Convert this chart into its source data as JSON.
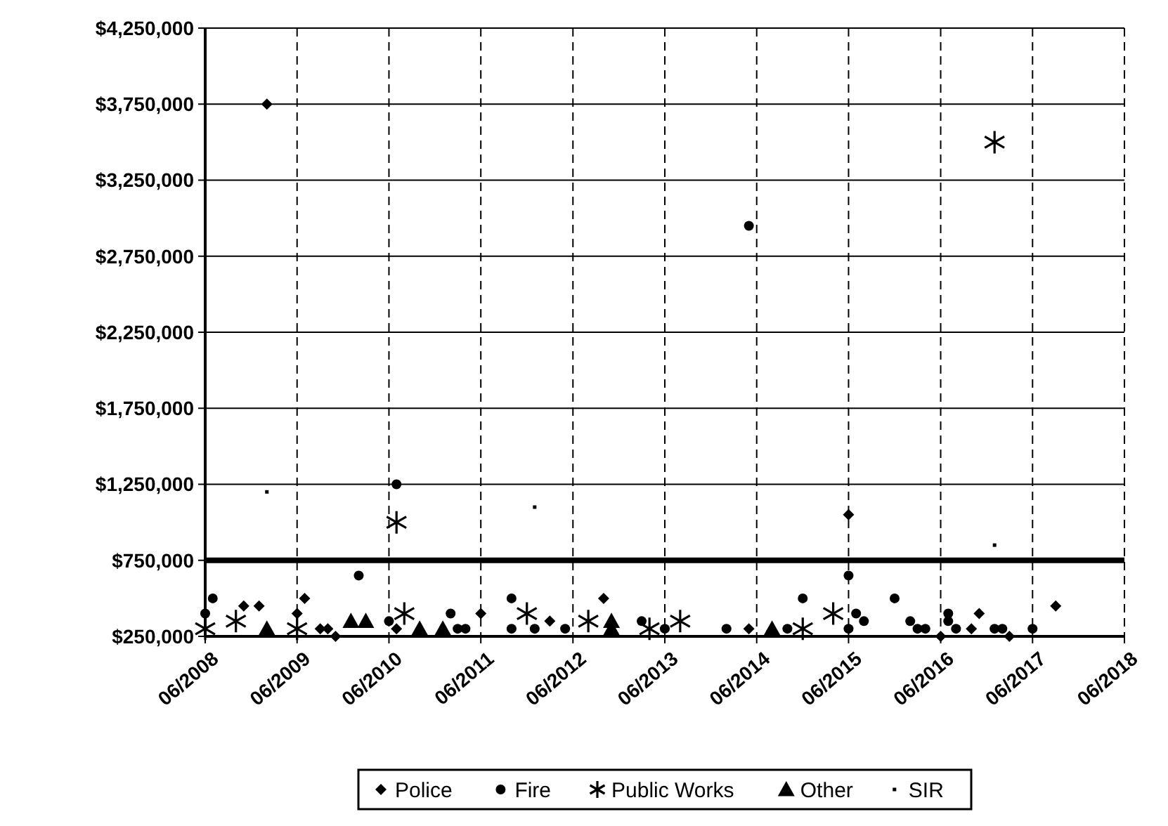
{
  "chart_data": {
    "type": "scatter",
    "xlim": [
      "2008-06",
      "2018-06"
    ],
    "xticks": [
      {
        "value": "2008-06",
        "label": "06/2008"
      },
      {
        "value": "2009-06",
        "label": "06/2009"
      },
      {
        "value": "2010-06",
        "label": "06/2010"
      },
      {
        "value": "2011-06",
        "label": "06/2011"
      },
      {
        "value": "2012-06",
        "label": "06/2012"
      },
      {
        "value": "2013-06",
        "label": "06/2013"
      },
      {
        "value": "2014-06",
        "label": "06/2014"
      },
      {
        "value": "2015-06",
        "label": "06/2015"
      },
      {
        "value": "2016-06",
        "label": "06/2016"
      },
      {
        "value": "2017-06",
        "label": "06/2017"
      },
      {
        "value": "2018-06",
        "label": "06/2018"
      }
    ],
    "ylim": [
      250000,
      4250000
    ],
    "yticks": [
      {
        "value": 250000,
        "label": "$250,000"
      },
      {
        "value": 750000,
        "label": "$750,000"
      },
      {
        "value": 1250000,
        "label": "$1,250,000"
      },
      {
        "value": 1750000,
        "label": "$1,750,000"
      },
      {
        "value": 2250000,
        "label": "$2,250,000"
      },
      {
        "value": 2750000,
        "label": "$2,750,000"
      },
      {
        "value": 3250000,
        "label": "$3,250,000"
      },
      {
        "value": 3750000,
        "label": "$3,750,000"
      },
      {
        "value": 4250000,
        "label": "$4,250,000"
      }
    ],
    "grid": true,
    "legend": "bottom",
    "ref_lines": [
      {
        "axis": "y",
        "value": 750000,
        "color": "#000000"
      }
    ],
    "series": [
      {
        "name": "Police",
        "color": "#000000",
        "marker": "diamond",
        "x": [
          "2009-02",
          "2008-11",
          "2009-01",
          "2009-06",
          "2009-07",
          "2009-09",
          "2009-10",
          "2009-11",
          "2010-07",
          "2011-06",
          "2012-03",
          "2012-10",
          "2014-05",
          "2015-06",
          "2016-06",
          "2016-10",
          "2016-11",
          "2017-03",
          "2017-09"
        ],
        "values": [
          3750000,
          450000,
          450000,
          400000,
          500000,
          300000,
          300000,
          250000,
          300000,
          400000,
          350000,
          500000,
          300000,
          1050000,
          250000,
          300000,
          400000,
          250000,
          450000
        ]
      },
      {
        "name": "Fire",
        "color": "#000000",
        "marker": "circle",
        "x": [
          "2008-06",
          "2008-07",
          "2010-02",
          "2010-06",
          "2010-07",
          "2011-02",
          "2011-03",
          "2011-04",
          "2011-10",
          "2011-10",
          "2012-01",
          "2012-05",
          "2013-03",
          "2013-06",
          "2014-02",
          "2014-05",
          "2014-10",
          "2014-12",
          "2015-06",
          "2015-06",
          "2015-07",
          "2015-08",
          "2015-12",
          "2016-02",
          "2016-03",
          "2016-04",
          "2016-07",
          "2016-07",
          "2016-08",
          "2017-01",
          "2017-02",
          "2017-06"
        ],
        "values": [
          400000,
          500000,
          650000,
          350000,
          1250000,
          400000,
          300000,
          300000,
          500000,
          300000,
          300000,
          300000,
          350000,
          300000,
          300000,
          2950000,
          300000,
          500000,
          650000,
          300000,
          400000,
          350000,
          500000,
          350000,
          300000,
          300000,
          400000,
          350000,
          300000,
          300000,
          300000,
          300000
        ]
      },
      {
        "name": "Public Works",
        "color": "#000000",
        "marker": "cross",
        "x": [
          "2008-06",
          "2008-10",
          "2009-06",
          "2010-07",
          "2010-08",
          "2011-12",
          "2012-08",
          "2013-04",
          "2013-08",
          "2014-12",
          "2015-04",
          "2017-01"
        ],
        "values": [
          300000,
          350000,
          300000,
          1000000,
          400000,
          400000,
          350000,
          300000,
          350000,
          300000,
          400000,
          3500000
        ]
      },
      {
        "name": "Other",
        "color": "#000000",
        "marker": "triangle",
        "x": [
          "2009-02",
          "2010-01",
          "2010-03",
          "2010-10",
          "2011-01",
          "2012-11",
          "2012-11",
          "2014-08"
        ],
        "values": [
          300000,
          350000,
          350000,
          300000,
          300000,
          350000,
          300000,
          300000
        ]
      },
      {
        "name": "SIR",
        "color": "#000000",
        "marker": "square",
        "x": [
          "2009-02",
          "2012-01",
          "2017-01"
        ],
        "values": [
          1200000,
          1100000,
          850000
        ]
      }
    ]
  }
}
